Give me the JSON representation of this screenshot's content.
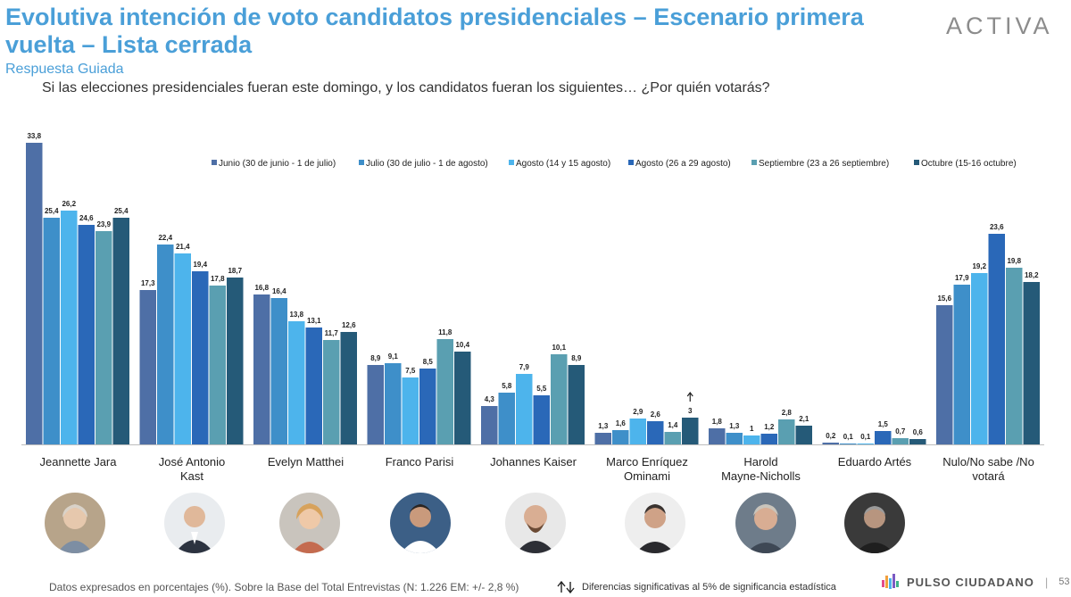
{
  "header": {
    "title": "Evolutiva intención de voto candidatos presidenciales – Escenario primera vuelta – Lista cerrada",
    "subtitle": "Respuesta Guiada",
    "question": "Si las elecciones presidenciales fueran este domingo, y los candidatos fueran los siguientes… ¿Por quién votarás?",
    "brand": "ACTIVA"
  },
  "colors": {
    "series": [
      "#4e6fa6",
      "#3e8fc9",
      "#4db4ec",
      "#2a68b8",
      "#5a9fb1",
      "#255a78"
    ],
    "title": "#4a9fd8"
  },
  "chart_data": {
    "type": "bar",
    "categories": [
      "Jeannette Jara",
      "José Antonio Kast",
      "Evelyn Matthei",
      "Franco Parisi",
      "Johannes Kaiser",
      "Marco Enríquez Ominami",
      "Harold Mayne-Nicholls",
      "Eduardo Artés",
      "Nulo/No sabe /No votará"
    ],
    "series": [
      {
        "name": "Junio (30 de junio - 1 de julio)",
        "values": [
          33.8,
          17.3,
          16.8,
          8.9,
          4.3,
          1.3,
          1.8,
          0.2,
          15.6
        ],
        "labels": [
          "33,8",
          "17,3",
          "16,8",
          "8,9",
          "4,3",
          "1,3",
          "1,8",
          "0,2",
          "15,6"
        ]
      },
      {
        "name": "Julio (30 de julio - 1 de agosto)",
        "values": [
          25.4,
          22.4,
          16.4,
          9.1,
          5.8,
          1.6,
          1.3,
          0.1,
          17.9
        ],
        "labels": [
          "25,4",
          "22,4",
          "16,4",
          "9,1",
          "5,8",
          "1,6",
          "1,3",
          "0,1",
          "17,9"
        ]
      },
      {
        "name": "Agosto (14 y 15 agosto)",
        "values": [
          26.2,
          21.4,
          13.8,
          7.5,
          7.9,
          2.9,
          1,
          0.1,
          19.2
        ],
        "labels": [
          "26,2",
          "21,4",
          "13,8",
          "7,5",
          "7,9",
          "2,9",
          "1",
          "0,1",
          "19,2"
        ]
      },
      {
        "name": "Agosto (26 a 29 agosto)",
        "values": [
          24.6,
          19.4,
          13.1,
          8.5,
          5.5,
          2.6,
          1.2,
          1.5,
          23.6
        ],
        "labels": [
          "24,6",
          "19,4",
          "13,1",
          "8,5",
          "5,5",
          "2,6",
          "1,2",
          "1,5",
          "23,6"
        ]
      },
      {
        "name": "Septiembre (23 a 26 septiembre)",
        "values": [
          23.9,
          17.8,
          11.7,
          11.8,
          10.1,
          1.4,
          2.8,
          0.7,
          19.8
        ],
        "labels": [
          "23,9",
          "17,8",
          "11,7",
          "11,8",
          "10,1",
          "1,4",
          "2,8",
          "0,7",
          "19,8"
        ]
      },
      {
        "name": "Octubre (15-16 octubre)",
        "values": [
          25.4,
          18.7,
          12.6,
          10.4,
          8.9,
          3,
          2.1,
          0.6,
          18.2
        ],
        "labels": [
          "25,4",
          "18,7",
          "12,6",
          "10,4",
          "8,9",
          "3",
          "2,1",
          "0,6",
          "18,2"
        ]
      }
    ],
    "significance_markers": [
      {
        "category": "Marco Enríquez Ominami",
        "series": "Octubre (15-16 octubre)",
        "direction": "up"
      }
    ],
    "ylim": [
      0,
      34
    ],
    "grid": false,
    "legend_position": "top-right",
    "xlabel": "",
    "ylabel": ""
  },
  "footer": {
    "note": "Datos expresados en porcentajes (%). Sobre la Base del Total Entrevistas (N: 1.226  EM: +/- 2,8 %)",
    "significance": "Diferencias  significativas  al 5% de significancia estadística",
    "brand": "PULSO CIUDADANO",
    "page": "53"
  }
}
